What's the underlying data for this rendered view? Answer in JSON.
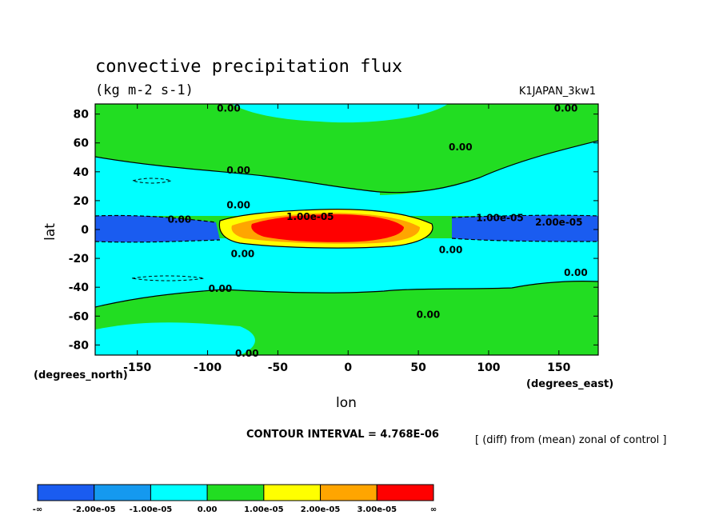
{
  "chart_data": {
    "type": "heatmap",
    "title": "convective precipitation flux",
    "units": "(kg m-2 s-1)",
    "dataset": "K1JAPAN_3kw1",
    "xlabel": "lon",
    "ylabel": "lat",
    "x_units": "(degrees_east)",
    "y_units": "(degrees_north)",
    "xlim": [
      -180,
      178
    ],
    "ylim": [
      -87,
      87
    ],
    "x_ticks": [
      -150,
      -100,
      -50,
      0,
      50,
      100,
      150
    ],
    "y_ticks": [
      -80,
      -60,
      -40,
      -20,
      0,
      20,
      40,
      60,
      80
    ],
    "contour_interval_text": "CONTOUR INTERVAL = 4.768E-06",
    "diff_note": "[ (diff) from (mean) zonal of control ]",
    "colorbar": {
      "labels": [
        "-∞",
        "-2.00e-05",
        "-1.00e-05",
        "0.00",
        "1.00e-05",
        "2.00e-05",
        "3.00e-05",
        "∞"
      ],
      "colors": [
        "#1a5cf0",
        "#1599ef",
        "#00ffff",
        "#22dd22",
        "#ffff00",
        "#ffa500",
        "#ff0000"
      ]
    },
    "contour_labels": [
      {
        "text": "0.00",
        "lon": -85,
        "lat": 84
      },
      {
        "text": "0.00",
        "lon": 155,
        "lat": 84
      },
      {
        "text": "0.00",
        "lon": 80,
        "lat": 57
      },
      {
        "text": "0.00",
        "lon": -78,
        "lat": 41
      },
      {
        "text": "0.00",
        "lon": -78,
        "lat": 17
      },
      {
        "text": "0.00",
        "lon": -120,
        "lat": 7
      },
      {
        "text": "1.00e-05",
        "lon": -27,
        "lat": 9
      },
      {
        "text": "1.00e-05",
        "lon": 108,
        "lat": 8
      },
      {
        "text": "2.00e-05",
        "lon": 150,
        "lat": 5
      },
      {
        "text": "0.00",
        "lon": 73,
        "lat": -14
      },
      {
        "text": "0.00",
        "lon": -75,
        "lat": -17
      },
      {
        "text": "0.00",
        "lon": 162,
        "lat": -30
      },
      {
        "text": "0.00",
        "lon": -91,
        "lat": -41
      },
      {
        "text": "0.00",
        "lon": 57,
        "lat": -59
      },
      {
        "text": "0.00",
        "lon": -72,
        "lat": -86
      }
    ],
    "field_regions": [
      {
        "value": "0.00 to 1.00e-05",
        "region": "poleward bands"
      },
      {
        "value": "-1.00e-05 to 0.00",
        "region": "subtropical bands"
      },
      {
        "value": "-2.00e-05 to -1.00e-05",
        "region": "equatorial bands, lon < -65 and lon > 70"
      },
      {
        "value": "> 3.00e-05",
        "region": "equatorial core, lon -50 to 30"
      }
    ]
  }
}
